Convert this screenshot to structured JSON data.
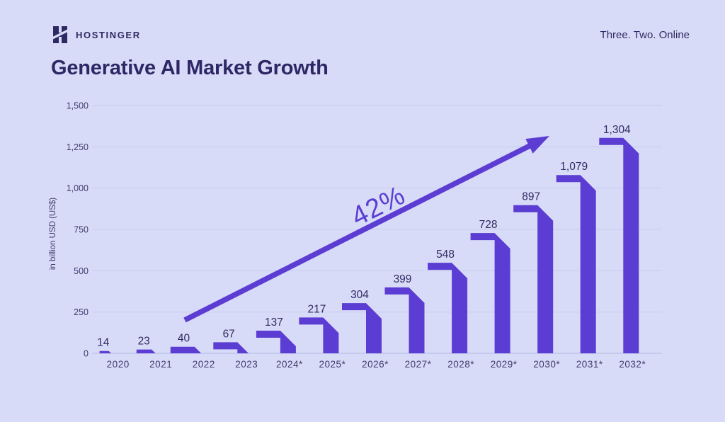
{
  "header": {
    "brand": "HOSTINGER",
    "logo_icon": "hostinger-h-icon",
    "tagline": "Three. Two. Online"
  },
  "title": "Generative AI Market Growth",
  "chart_data": {
    "type": "bar",
    "title": "Generative AI Market Growth",
    "categories": [
      "2020",
      "2021",
      "2022",
      "2023",
      "2024*",
      "2025*",
      "2026*",
      "2027*",
      "2028*",
      "2029*",
      "2030*",
      "2031*",
      "2032*"
    ],
    "values": [
      14,
      23,
      40,
      67,
      137,
      217,
      304,
      399,
      548,
      728,
      897,
      1079,
      1304
    ],
    "value_labels": [
      "14",
      "23",
      "40",
      "67",
      "137",
      "217",
      "304",
      "399",
      "548",
      "728",
      "897",
      "1,079",
      "1,304"
    ],
    "xlabel": "",
    "ylabel": "in billion USD (US$)",
    "ylim": [
      0,
      1500
    ],
    "yticks": [
      0,
      250,
      500,
      750,
      1000,
      1250,
      1500
    ],
    "ytick_labels": [
      "0",
      "250",
      "500",
      "750",
      "1,000",
      "1,250",
      "1,500"
    ],
    "grid": true,
    "legend": false,
    "annotation": {
      "text": "42%",
      "type": "growth-arrow"
    },
    "colors": {
      "background": "#d8dbf7",
      "bar": "#5b3dd3",
      "arrow": "#5b3dd3",
      "text_dark": "#2f2b64",
      "tick_text": "#3f3b6d",
      "gridline": "#c7cbed",
      "baseline": "#b9bee9"
    }
  }
}
